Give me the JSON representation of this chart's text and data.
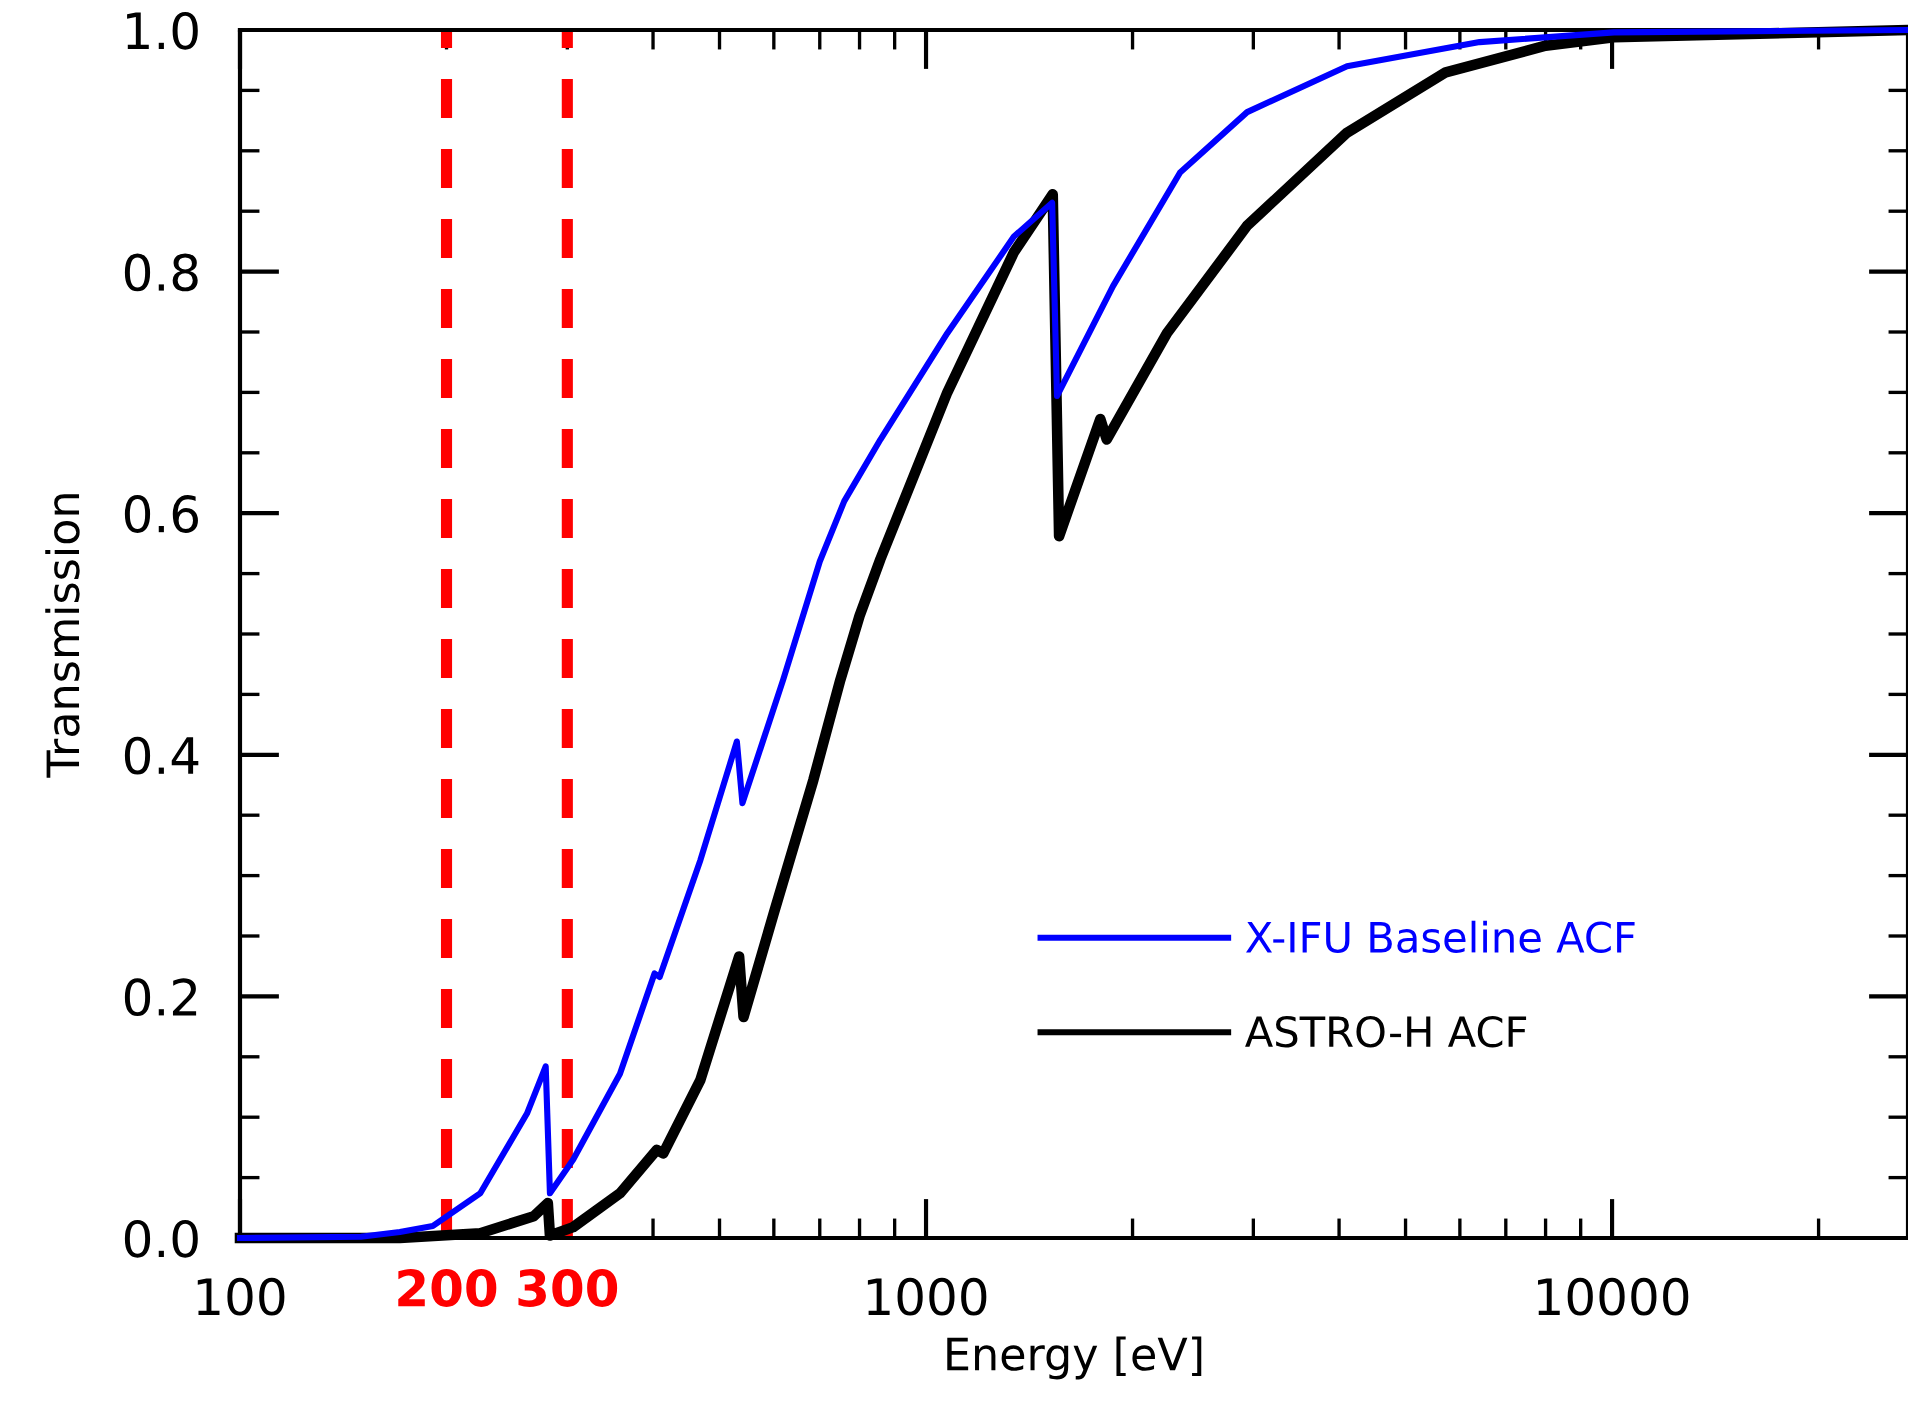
{
  "chart_data": {
    "type": "line",
    "xlabel": "Energy [eV]",
    "ylabel": "Transmission",
    "log": "x",
    "xlim": [
      100,
      27000
    ],
    "xticks": [
      100,
      1000,
      10000
    ],
    "ylim": [
      0,
      1.0
    ],
    "yticks": [
      {
        "value": 0,
        "label": "0.0"
      },
      {
        "value": 0.2,
        "label": "0.2"
      },
      {
        "value": 0.4,
        "label": "0.4"
      },
      {
        "value": 0.6,
        "label": "0.6"
      },
      {
        "value": 0.8,
        "label": "0.8"
      },
      {
        "value": 1,
        "label": "1.0"
      }
    ],
    "grid": false,
    "legend": "lower right",
    "line_style": "solid",
    "marker": "none",
    "ref_lines": [
      {
        "axis": "x",
        "value": 200,
        "label": "200",
        "color": "#ff0000",
        "line_style": "dashed"
      },
      {
        "axis": "x",
        "value": 300,
        "label": "300",
        "color": "#ff0000",
        "line_style": "dashed"
      }
    ],
    "series": [
      {
        "name": "X-IFU Baseline ACF",
        "color": "#0000ff",
        "x": [
          100,
          150,
          171,
          191,
          224,
          262,
          279,
          283,
          306,
          358,
          402,
          409,
          469,
          530,
          540,
          619,
          700,
          760,
          858,
          1074,
          1343,
          1527,
          1552,
          1873,
          2346,
          2938,
          4108,
          6411,
          10060,
          27000
        ],
        "values": [
          0.0,
          0.001,
          0.005,
          0.01,
          0.037,
          0.103,
          0.142,
          0.037,
          0.065,
          0.136,
          0.219,
          0.216,
          0.313,
          0.411,
          0.36,
          0.462,
          0.56,
          0.61,
          0.661,
          0.749,
          0.829,
          0.857,
          0.697,
          0.788,
          0.882,
          0.932,
          0.97,
          0.99,
          0.998,
          1.0
        ]
      },
      {
        "name": "ASTRO-H ACF",
        "color": "#000000",
        "x": [
          100,
          171,
          224,
          268,
          281,
          283,
          306,
          358,
          405,
          414,
          469,
          534,
          542,
          600,
          685,
          750,
          800,
          858,
          1074,
          1343,
          1530,
          1563,
          1795,
          1834,
          2245,
          2938,
          4108,
          5722,
          8000,
          10060,
          27000
        ],
        "values": [
          0.0,
          0.0,
          0.004,
          0.018,
          0.029,
          0.002,
          0.009,
          0.037,
          0.073,
          0.07,
          0.131,
          0.233,
          0.183,
          0.269,
          0.379,
          0.462,
          0.515,
          0.562,
          0.7,
          0.816,
          0.864,
          0.581,
          0.678,
          0.661,
          0.749,
          0.838,
          0.915,
          0.965,
          0.987,
          0.994,
          1.0
        ]
      }
    ]
  }
}
